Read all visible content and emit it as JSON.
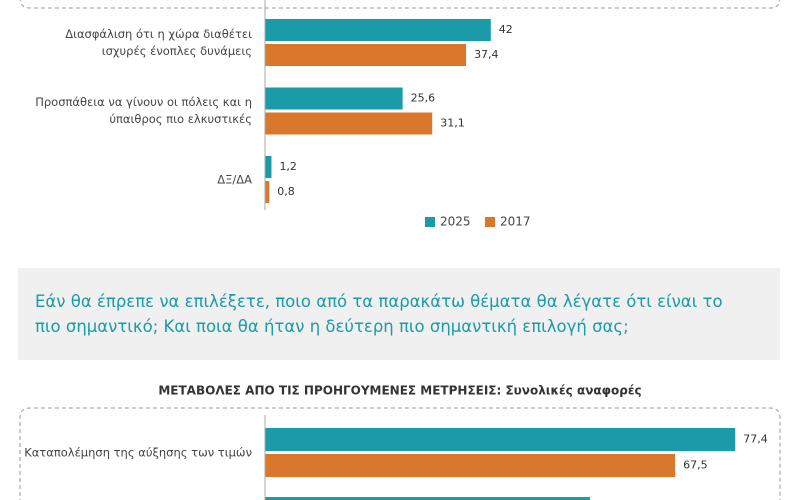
{
  "chart_data": [
    {
      "type": "bar",
      "orientation": "horizontal",
      "categories": [
        "Διασφάλιση ότι η χώρα διαθέτει ισχυρές ένοπλες δυνάμεις",
        "Προσπάθεια να γίνουν οι πόλεις και η ύπαιθρος πιο ελκυστικές",
        "ΔΞ/ΔΑ"
      ],
      "series": [
        {
          "name": "2025",
          "color": "#1b9aa7",
          "values": [
            42,
            25.6,
            1.2
          ],
          "value_labels": [
            null,
            "25,6",
            "1,2"
          ]
        },
        {
          "name": "2017",
          "color": "#d9782d",
          "values": [
            37.4,
            31.1,
            0.8
          ],
          "value_labels": [
            "37,4",
            "31,1",
            "0,8"
          ]
        }
      ],
      "xlim": [
        0,
        93
      ],
      "legend": "bottom"
    },
    {
      "type": "bar",
      "orientation": "horizontal",
      "title": "ΜΕΤΑΒΟΛΕΣ ΑΠΟ ΤΙΣ ΠΡΟΗΓΟΥΜΕΝΕΣ ΜΕΤΡΗΣΕΙΣ: Συνολικές αναφορές",
      "categories": [
        "Καταπολέμηση της αύξησης των τιμών",
        null
      ],
      "series": [
        {
          "color": "#1b9aa7",
          "values": [
            77.4,
            53.5
          ],
          "value_labels": [
            "77,4",
            null
          ]
        },
        {
          "color": "#d9782d",
          "values": [
            67.5,
            null
          ],
          "value_labels": [
            "67,5",
            null
          ]
        }
      ],
      "xlim": [
        0,
        82.3
      ]
    }
  ],
  "question": "Εάν θα έπρεπε να επιλέξετε, ποιο από τα παρακάτω θέματα θα λέγατε ότι είναι το πιο σημαντικό; Και ποια θα ήταν η δεύτερη πιο σημαντική επιλογή σας;"
}
